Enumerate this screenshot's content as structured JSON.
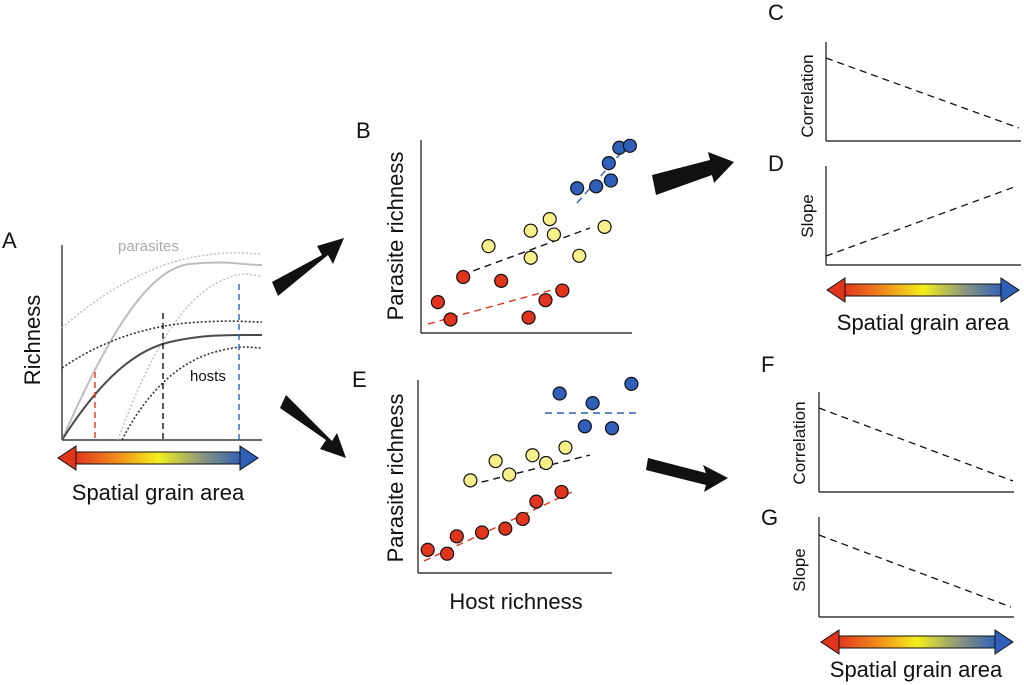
{
  "colors": {
    "red": "#e0341c",
    "yellow": "#f7f08a",
    "blue": "#2f5fb8",
    "black": "#111111",
    "grey": "#bdbdbd",
    "dark_grey": "#4a4a4a"
  },
  "panels": {
    "A": {
      "label": "A",
      "ylabel": "Richness",
      "xlabel": "Spatial grain area",
      "curve_labels": {
        "parasites": "parasites",
        "hosts": "hosts"
      }
    },
    "B": {
      "label": "B",
      "ylabel": "Parasite richness",
      "groups": {
        "red": [
          [
            0.08,
            0.84
          ],
          [
            0.2,
            0.71
          ],
          [
            0.38,
            0.73
          ],
          [
            0.67,
            0.78
          ],
          [
            0.14,
            0.93
          ],
          [
            0.51,
            0.92
          ],
          [
            0.59,
            0.83
          ]
        ],
        "yellow": [
          [
            0.32,
            0.55
          ],
          [
            0.52,
            0.47
          ],
          [
            0.63,
            0.49
          ],
          [
            0.61,
            0.41
          ],
          [
            0.87,
            0.45
          ],
          [
            0.52,
            0.61
          ],
          [
            0.75,
            0.6
          ]
        ],
        "blue": [
          [
            0.74,
            0.25
          ],
          [
            0.83,
            0.24
          ],
          [
            0.9,
            0.21
          ],
          [
            0.89,
            0.12
          ],
          [
            0.94,
            0.04
          ],
          [
            0.99,
            0.03
          ]
        ]
      }
    },
    "C": {
      "label": "C",
      "ylabel": "Correlation"
    },
    "D": {
      "label": "D",
      "ylabel": "Slope"
    },
    "E": {
      "label": "E",
      "ylabel": "Parasite richness",
      "xlabel": "Host richness",
      "groups": {
        "red": [
          [
            0.05,
            0.88
          ],
          [
            0.15,
            0.9
          ],
          [
            0.2,
            0.81
          ],
          [
            0.33,
            0.79
          ],
          [
            0.45,
            0.77
          ],
          [
            0.54,
            0.72
          ],
          [
            0.61,
            0.63
          ],
          [
            0.74,
            0.58
          ]
        ],
        "yellow": [
          [
            0.27,
            0.52
          ],
          [
            0.4,
            0.42
          ],
          [
            0.47,
            0.49
          ],
          [
            0.59,
            0.39
          ],
          [
            0.66,
            0.43
          ],
          [
            0.76,
            0.35
          ]
        ],
        "blue": [
          [
            0.73,
            0.07
          ],
          [
            0.9,
            0.12
          ],
          [
            1.1,
            0.02
          ],
          [
            0.86,
            0.24
          ],
          [
            1.0,
            0.25
          ]
        ]
      }
    },
    "F": {
      "label": "F",
      "ylabel": "Correlation"
    },
    "G": {
      "label": "G",
      "ylabel": "Slope",
      "xlabel": "Spatial grain area"
    },
    "CD_xlabel": "Spatial grain area"
  }
}
